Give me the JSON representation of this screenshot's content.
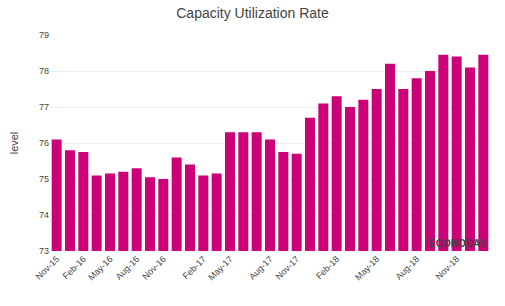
{
  "chart_data": {
    "type": "bar",
    "title": "Capacity Utilization Rate",
    "ylabel": "level",
    "categories": [
      "Nov-15",
      null,
      "Feb-16",
      null,
      "May-16",
      null,
      "Aug-16",
      null,
      "Nov-16",
      null,
      null,
      "Feb-17",
      null,
      "May-17",
      null,
      null,
      "Aug-17",
      null,
      "Nov-17",
      null,
      null,
      "Feb-18",
      null,
      null,
      "May-18",
      null,
      null,
      "Aug-18",
      null,
      null,
      "Nov-18",
      null,
      null
    ],
    "values": [
      76.1,
      75.8,
      75.75,
      75.1,
      75.15,
      75.2,
      75.3,
      75.05,
      75.0,
      75.6,
      75.4,
      75.1,
      75.15,
      76.3,
      76.3,
      76.3,
      76.1,
      75.75,
      75.7,
      76.7,
      77.1,
      77.3,
      77.0,
      77.2,
      77.5,
      78.2,
      77.5,
      77.8,
      78.0,
      78.45,
      78.4,
      78.1,
      78.45
    ],
    "color": "#CC0077",
    "ylim": [
      73,
      79
    ],
    "yticks": [
      73,
      74,
      75,
      76,
      77,
      78,
      79
    ],
    "grid": true,
    "annotation": "ECONODAY."
  }
}
